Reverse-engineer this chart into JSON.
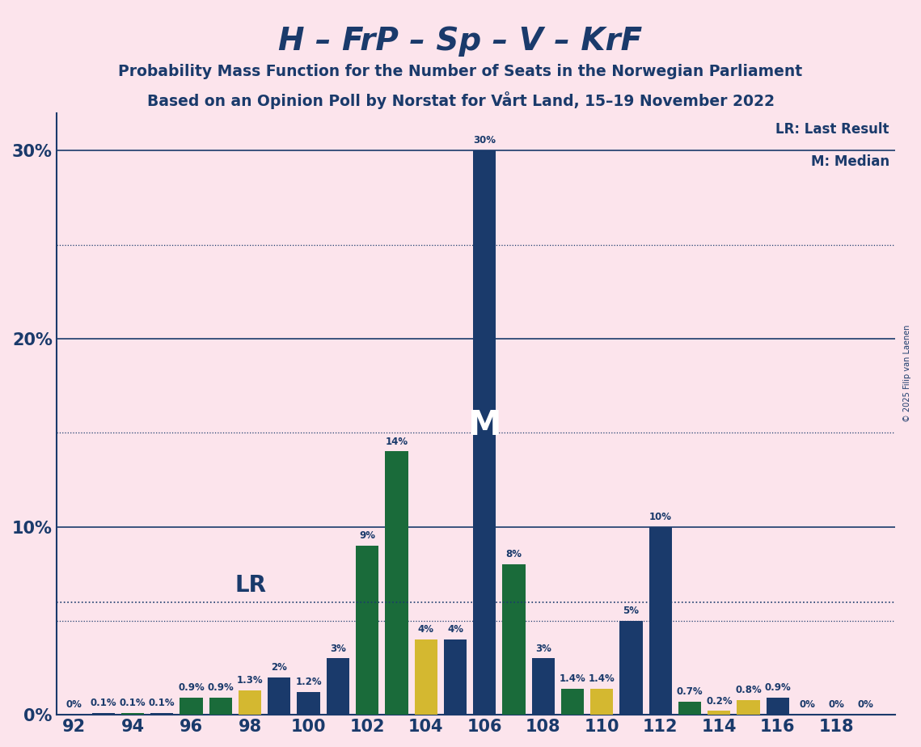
{
  "title1": "H – FrP – Sp – V – KrF",
  "title2": "Probability Mass Function for the Number of Seats in the Norwegian Parliament",
  "title3": "Based on an Opinion Poll by Norstat for Vårt Land, 15–19 November 2022",
  "copyright": "© 2025 Filip van Laenen",
  "lr_label": "LR: Last Result",
  "m_label": "M: Median",
  "lr_value": 6.0,
  "median_seat": 106,
  "background_color": "#fce4ec",
  "bar_color_blue": "#1a3a6b",
  "bar_color_green": "#1a6b3a",
  "bar_color_yellow": "#d4b830",
  "axis_color": "#1a3a6b",
  "bar_data": [
    {
      "seat": 92,
      "color": "blue",
      "value": 0.0,
      "label": "0%"
    },
    {
      "seat": 93,
      "color": "blue",
      "value": 0.1,
      "label": "0.1%"
    },
    {
      "seat": 94,
      "color": "green",
      "value": 0.1,
      "label": "0.1%"
    },
    {
      "seat": 95,
      "color": "blue",
      "value": 0.1,
      "label": "0.1%"
    },
    {
      "seat": 96,
      "color": "green",
      "value": 0.9,
      "label": "0.9%"
    },
    {
      "seat": 97,
      "color": "green",
      "value": 0.9,
      "label": "0.9%"
    },
    {
      "seat": 98,
      "color": "yellow",
      "value": 1.3,
      "label": "1.3%"
    },
    {
      "seat": 99,
      "color": "blue",
      "value": 2.0,
      "label": "2%"
    },
    {
      "seat": 100,
      "color": "blue",
      "value": 1.2,
      "label": "1.2%"
    },
    {
      "seat": 101,
      "color": "blue",
      "value": 3.0,
      "label": "3%"
    },
    {
      "seat": 102,
      "color": "green",
      "value": 9.0,
      "label": "9%"
    },
    {
      "seat": 103,
      "color": "green",
      "value": 14.0,
      "label": "14%"
    },
    {
      "seat": 104,
      "color": "yellow",
      "value": 4.0,
      "label": "4%"
    },
    {
      "seat": 105,
      "color": "blue",
      "value": 4.0,
      "label": "4%"
    },
    {
      "seat": 106,
      "color": "blue",
      "value": 30.0,
      "label": "30%"
    },
    {
      "seat": 107,
      "color": "green",
      "value": 8.0,
      "label": "8%"
    },
    {
      "seat": 108,
      "color": "blue",
      "value": 3.0,
      "label": "3%"
    },
    {
      "seat": 109,
      "color": "green",
      "value": 1.4,
      "label": "1.4%"
    },
    {
      "seat": 110,
      "color": "yellow",
      "value": 1.4,
      "label": "1.4%"
    },
    {
      "seat": 111,
      "color": "blue",
      "value": 5.0,
      "label": "5%"
    },
    {
      "seat": 112,
      "color": "blue",
      "value": 10.0,
      "label": "10%"
    },
    {
      "seat": 113,
      "color": "green",
      "value": 0.7,
      "label": "0.7%"
    },
    {
      "seat": 114,
      "color": "yellow",
      "value": 0.2,
      "label": "0.2%"
    },
    {
      "seat": 115,
      "color": "yellow",
      "value": 0.8,
      "label": "0.8%"
    },
    {
      "seat": 116,
      "color": "blue",
      "value": 0.9,
      "label": "0.9%"
    },
    {
      "seat": 117,
      "color": "blue",
      "value": 0.0,
      "label": "0%"
    },
    {
      "seat": 118,
      "color": "blue",
      "value": 0.0,
      "label": "0%"
    },
    {
      "seat": 119,
      "color": "blue",
      "value": 0.0,
      "label": "0%"
    }
  ],
  "xtick_seats": [
    92,
    94,
    96,
    98,
    100,
    102,
    104,
    106,
    108,
    110,
    112,
    114,
    116,
    118
  ],
  "ytick_majors": [
    0,
    10,
    20,
    30
  ],
  "ytick_minors": [
    5,
    15,
    25
  ],
  "ytick_labels": [
    "0%",
    "10%",
    "20%",
    "30%"
  ],
  "ylim": [
    0,
    32
  ],
  "xlim": [
    91.4,
    120.0
  ]
}
